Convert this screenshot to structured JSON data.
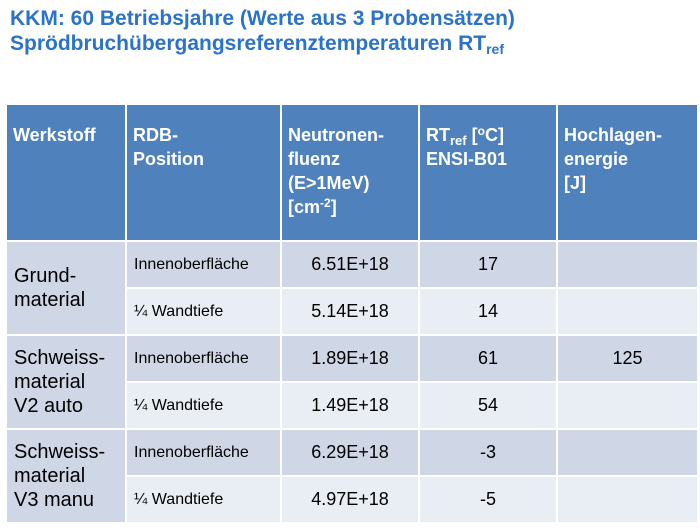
{
  "title": {
    "line1": "KKM: 60 Betriebsjahre (Werte aus 3 Probensätzen)",
    "line2_main": "Sprödbruchübergangsreferenztemperaturen RT",
    "line2_sub": "ref"
  },
  "table": {
    "headers": {
      "werkstoff": "Werkstoff",
      "rdb_line1": "RDB-",
      "rdb_line2": "Position",
      "fluenz_line1": "Neutronen-",
      "fluenz_line2": "fluenz",
      "fluenz_line3": "(E>1MeV)",
      "fluenz_line4_main": "[cm",
      "fluenz_line4_sup": "-2",
      "fluenz_line4_end": "]",
      "rt_main": "RT",
      "rt_sub": "ref",
      "rt_unit_open": " [",
      "rt_unit_sup": "o",
      "rt_unit_end": "C]",
      "rt_line2": "ENSI-B01",
      "hoch_line1": "Hochlagen-",
      "hoch_line2": "energie",
      "hoch_line3": "[J]"
    },
    "groups": [
      {
        "material_line1": "Grund-",
        "material_line2": "material",
        "material_line3": "",
        "rows": [
          {
            "position": "Innenoberfläche",
            "fluenz": "6.51E+18",
            "rt": "17",
            "energie": ""
          },
          {
            "position": "¼ Wandtiefe",
            "fluenz": "5.14E+18",
            "rt": "14",
            "energie": ""
          }
        ]
      },
      {
        "material_line1": "Schweiss-",
        "material_line2": "material",
        "material_line3": "V2 auto",
        "rows": [
          {
            "position": "Innenoberfläche",
            "fluenz": "1.89E+18",
            "rt": "61",
            "energie": "125"
          },
          {
            "position": "¼ Wandtiefe",
            "fluenz": "1.49E+18",
            "rt": "54",
            "energie": ""
          }
        ]
      },
      {
        "material_line1": "Schweiss-",
        "material_line2": "material",
        "material_line3": "V3 manu",
        "rows": [
          {
            "position": "Innenoberfläche",
            "fluenz": "6.29E+18",
            "rt": "-3",
            "energie": ""
          },
          {
            "position": "¼ Wandtiefe",
            "fluenz": "4.97E+18",
            "rt": "-5",
            "energie": ""
          }
        ]
      }
    ]
  },
  "colors": {
    "title": "#2b73c8",
    "header_bg": "#4f81bd",
    "row_dark": "#cfd7e6",
    "row_light": "#e9edf4"
  }
}
